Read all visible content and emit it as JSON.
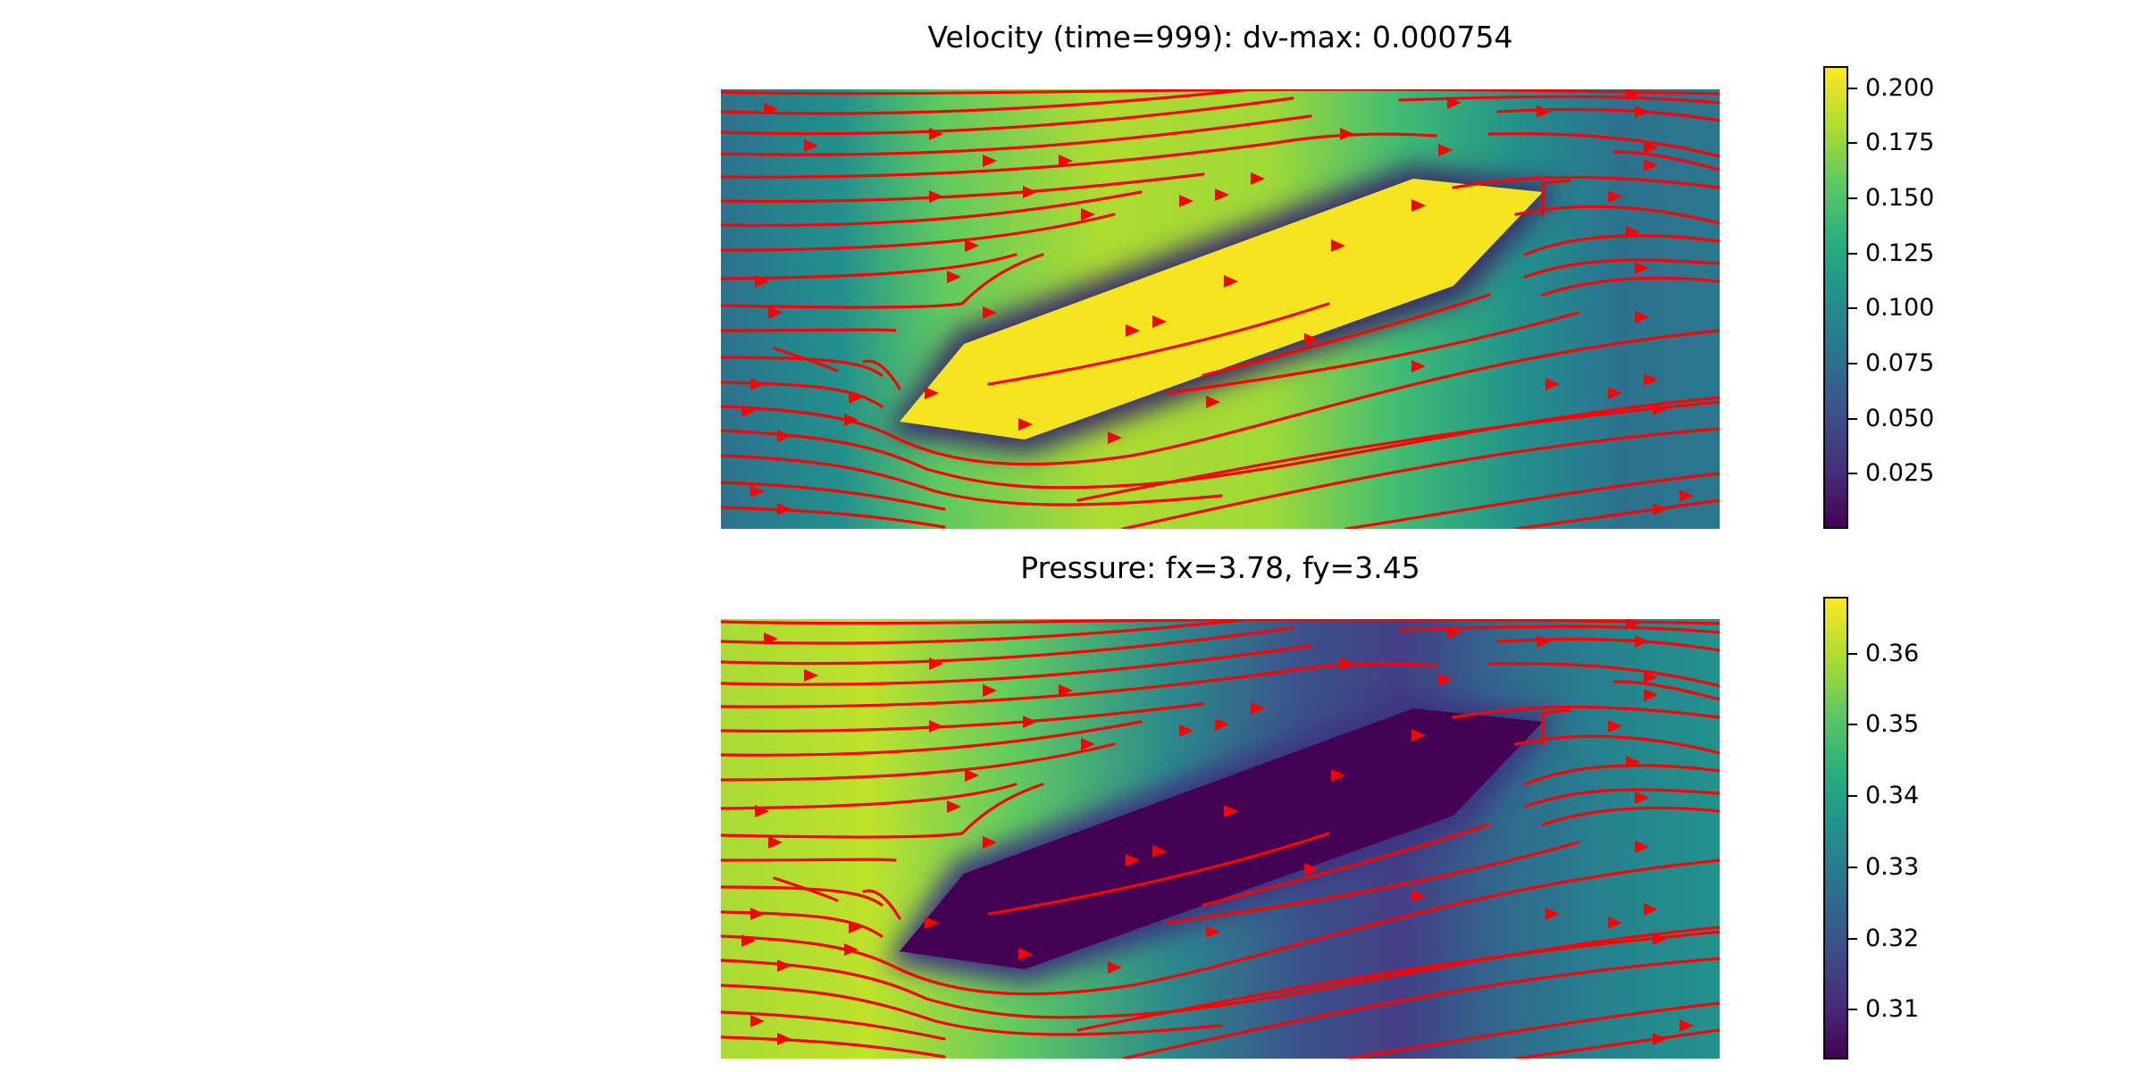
{
  "chart_data": [
    {
      "type": "heatmap",
      "title": "Velocity (time=999): dv-max: 0.000754",
      "colormap": "viridis",
      "colorbar": {
        "range": [
          0.0,
          0.21
        ],
        "ticks": [
          0.025,
          0.05,
          0.075,
          0.1,
          0.125,
          0.15,
          0.175,
          0.2
        ],
        "tick_labels": [
          "0.025",
          "0.050",
          "0.075",
          "0.100",
          "0.125",
          "0.150",
          "0.175",
          "0.200"
        ]
      },
      "overlay": {
        "type": "streamlines",
        "color": "#ff0000"
      },
      "axes_visible": false
    },
    {
      "type": "heatmap",
      "title": "Pressure: fx=3.78, fy=3.45",
      "colormap": "viridis",
      "colorbar": {
        "range": [
          0.303,
          0.368
        ],
        "ticks": [
          0.31,
          0.32,
          0.33,
          0.34,
          0.35,
          0.36
        ],
        "tick_labels": [
          "0.31",
          "0.32",
          "0.33",
          "0.34",
          "0.35",
          "0.36"
        ]
      },
      "overlay": {
        "type": "streamlines",
        "color": "#ff0000"
      },
      "axes_visible": false
    }
  ]
}
